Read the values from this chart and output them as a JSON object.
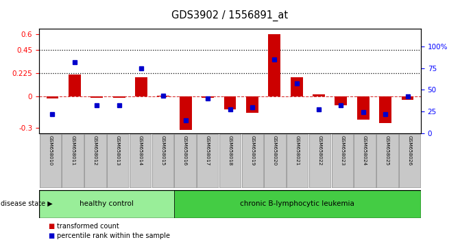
{
  "title": "GDS3902 / 1556891_at",
  "samples": [
    "GSM658010",
    "GSM658011",
    "GSM658012",
    "GSM658013",
    "GSM658014",
    "GSM658015",
    "GSM658016",
    "GSM658017",
    "GSM658018",
    "GSM658019",
    "GSM658020",
    "GSM658021",
    "GSM658022",
    "GSM658023",
    "GSM658024",
    "GSM658025",
    "GSM658026"
  ],
  "bar_values": [
    -0.02,
    0.215,
    -0.01,
    -0.01,
    0.19,
    0.01,
    -0.32,
    -0.01,
    -0.12,
    -0.155,
    0.6,
    0.19,
    0.02,
    -0.08,
    -0.22,
    -0.255,
    -0.03
  ],
  "dot_values": [
    22,
    82,
    32,
    32,
    75,
    43,
    15,
    40,
    27,
    30,
    85,
    57,
    27,
    32,
    24,
    22,
    42
  ],
  "groups": [
    {
      "label": "healthy control",
      "start": 0,
      "end": 6,
      "color": "#99EE99"
    },
    {
      "label": "chronic B-lymphocytic leukemia",
      "start": 6,
      "end": 17,
      "color": "#44CC44"
    }
  ],
  "bar_color": "#CC0000",
  "dot_color": "#0000CC",
  "ylim_left": [
    -0.35,
    0.65
  ],
  "ylim_right": [
    0,
    120
  ],
  "yticks_left": [
    -0.3,
    0.0,
    0.225,
    0.45,
    0.6
  ],
  "yticks_right": [
    0,
    25,
    50,
    75,
    100
  ],
  "ytick_labels_left": [
    "-0.3",
    "0",
    "0.225",
    "0.45",
    "0.6"
  ],
  "ytick_labels_right": [
    "0",
    "25",
    "50",
    "75",
    "100%"
  ],
  "hlines": [
    0.45,
    0.225
  ],
  "dashed_hline": 0.0,
  "legend": [
    "transformed count",
    "percentile rank within the sample"
  ],
  "disease_state_label": "disease state"
}
